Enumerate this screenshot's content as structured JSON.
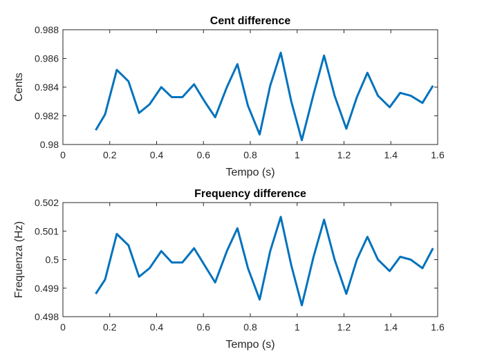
{
  "chart_data": [
    {
      "type": "line",
      "title": "Cent difference",
      "xlabel": "Tempo (s)",
      "ylabel": "Cents",
      "xlim": [
        0,
        1.6
      ],
      "ylim": [
        0.98,
        0.988
      ],
      "xticks": [
        0,
        0.2,
        0.4,
        0.6,
        0.8,
        1,
        1.2,
        1.4,
        1.6
      ],
      "xtick_labels": [
        "0",
        "0.2",
        "0.4",
        "0.6",
        "0.8",
        "1",
        "1.2",
        "1.4",
        "1.6"
      ],
      "yticks": [
        0.98,
        0.982,
        0.984,
        0.986,
        0.988
      ],
      "ytick_labels": [
        "0.98",
        "0.982",
        "0.984",
        "0.986",
        "0.988"
      ],
      "grid": false,
      "color": "#0072BD",
      "series": [
        {
          "x": [
            0.14,
            0.18,
            0.23,
            0.28,
            0.325,
            0.37,
            0.42,
            0.465,
            0.51,
            0.56,
            0.605,
            0.65,
            0.7,
            0.745,
            0.79,
            0.84,
            0.885,
            0.93,
            0.975,
            1.02,
            1.07,
            1.115,
            1.16,
            1.21,
            1.255,
            1.3,
            1.345,
            1.395,
            1.44,
            1.485,
            1.535,
            1.58
          ],
          "y": [
            0.981,
            0.9821,
            0.9852,
            0.9844,
            0.9822,
            0.9828,
            0.984,
            0.9833,
            0.9833,
            0.9842,
            0.983,
            0.9819,
            0.984,
            0.9856,
            0.9827,
            0.9807,
            0.9841,
            0.9864,
            0.983,
            0.9803,
            0.9835,
            0.9862,
            0.9834,
            0.9811,
            0.9833,
            0.985,
            0.9834,
            0.9826,
            0.9836,
            0.9834,
            0.9829,
            0.9841
          ]
        }
      ]
    },
    {
      "type": "line",
      "title": "Frequency difference",
      "xlabel": "Tempo (s)",
      "ylabel": "Frequenza (Hz)",
      "xlim": [
        0,
        1.6
      ],
      "ylim": [
        0.498,
        0.502
      ],
      "xticks": [
        0,
        0.2,
        0.4,
        0.6,
        0.8,
        1,
        1.2,
        1.4,
        1.6
      ],
      "xtick_labels": [
        "0",
        "0.2",
        "0.4",
        "0.6",
        "0.8",
        "1",
        "1.2",
        "1.4",
        "1.6"
      ],
      "yticks": [
        0.498,
        0.499,
        0.5,
        0.501,
        0.502
      ],
      "ytick_labels": [
        "0.498",
        "0.499",
        "0.5",
        "0.501",
        "0.502"
      ],
      "grid": false,
      "color": "#0072BD",
      "series": [
        {
          "x": [
            0.14,
            0.18,
            0.23,
            0.28,
            0.325,
            0.37,
            0.42,
            0.465,
            0.51,
            0.56,
            0.605,
            0.65,
            0.7,
            0.745,
            0.79,
            0.84,
            0.885,
            0.93,
            0.975,
            1.02,
            1.07,
            1.115,
            1.16,
            1.21,
            1.255,
            1.3,
            1.345,
            1.395,
            1.44,
            1.485,
            1.535,
            1.58
          ],
          "y": [
            0.4988,
            0.4993,
            0.5009,
            0.5005,
            0.4994,
            0.4997,
            0.5003,
            0.4999,
            0.4999,
            0.5004,
            0.4998,
            0.4992,
            0.5003,
            0.5011,
            0.4997,
            0.4986,
            0.5003,
            0.5015,
            0.4998,
            0.4984,
            0.5001,
            0.5014,
            0.5,
            0.4988,
            0.5,
            0.5008,
            0.5,
            0.4996,
            0.5001,
            0.5,
            0.4997,
            0.5004
          ]
        }
      ]
    }
  ]
}
